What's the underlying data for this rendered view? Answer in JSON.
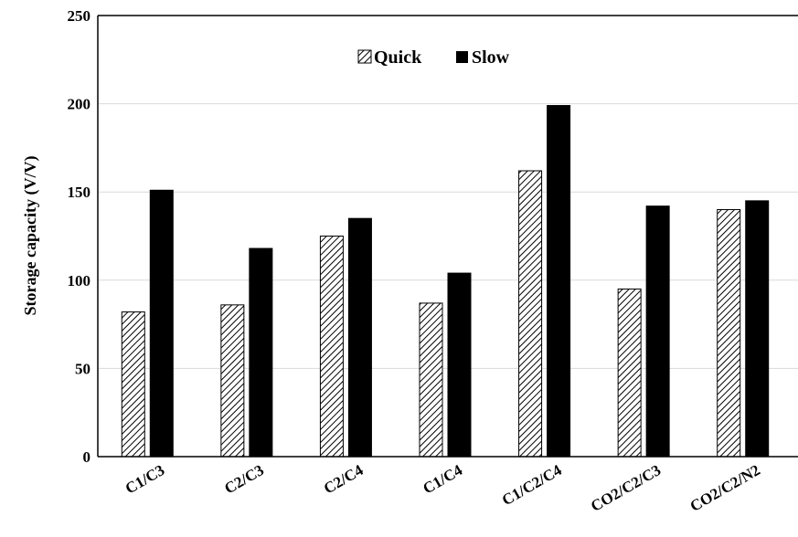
{
  "chart_data": {
    "type": "bar",
    "title": "",
    "xlabel": "",
    "ylabel": "Storage capacity (V/V)",
    "ylim": [
      0,
      250
    ],
    "yticks": [
      0,
      50,
      100,
      150,
      200,
      250
    ],
    "grid": true,
    "legend_position": "top-center",
    "categories": [
      "C1/C3",
      "C2/C3",
      "C2/C4",
      "C1/C4",
      "C1/C2/C4",
      "CO2/C2/C3",
      "CO2/C2/N2"
    ],
    "series": [
      {
        "name": "Quick",
        "pattern": "diagonal-hatch",
        "color": "#000000",
        "values": [
          82,
          86,
          125,
          87,
          162,
          95,
          140
        ]
      },
      {
        "name": "Slow",
        "pattern": "solid",
        "color": "#000000",
        "values": [
          151,
          118,
          135,
          104,
          199,
          142,
          145
        ]
      }
    ],
    "colors": {
      "grid": "#d9d9d9",
      "axis": "#000000",
      "background": "#ffffff"
    }
  }
}
